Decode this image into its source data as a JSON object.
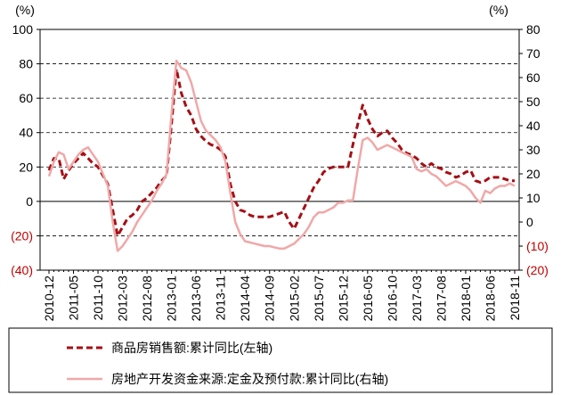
{
  "chart_data": {
    "type": "line",
    "y_label": "(%)",
    "y2_label": "(%)",
    "categories": [
      "2010-12",
      null,
      null,
      null,
      null,
      "2011-05",
      null,
      null,
      null,
      null,
      "2011-10",
      null,
      null,
      null,
      null,
      "2012-03",
      null,
      null,
      null,
      null,
      "2012-08",
      null,
      null,
      null,
      null,
      "2013-01",
      null,
      null,
      null,
      null,
      "2013-06",
      null,
      null,
      null,
      null,
      "2013-11",
      null,
      null,
      null,
      null,
      "2014-04",
      null,
      null,
      null,
      null,
      "2014-09",
      null,
      null,
      null,
      null,
      "2015-02",
      null,
      null,
      null,
      null,
      "2015-07",
      null,
      null,
      null,
      null,
      "2015-12",
      null,
      null,
      null,
      null,
      "2016-05",
      null,
      null,
      null,
      null,
      "2016-10",
      null,
      null,
      null,
      null,
      "2017-03",
      null,
      null,
      null,
      null,
      "2017-08",
      null,
      null,
      null,
      null,
      "2018-01",
      null,
      null,
      null,
      null,
      "2018-06",
      null,
      null,
      null,
      null,
      "2018-11"
    ],
    "series": [
      {
        "name": "商品房销售额:累计同比(左轴)",
        "color": "#a50f15",
        "dash": true,
        "axis": "y",
        "values": [
          18,
          25,
          25,
          13,
          18,
          22,
          25,
          28,
          25,
          22,
          20,
          15,
          10,
          -5,
          -20,
          -15,
          -10,
          -8,
          -5,
          0,
          2,
          5,
          8,
          12,
          15,
          45,
          77,
          63,
          55,
          50,
          42,
          38,
          35,
          33,
          32,
          30,
          26,
          10,
          0,
          -5,
          -6,
          -8,
          -9,
          -9,
          -9,
          -9,
          -8,
          -7,
          -6,
          -12,
          -16,
          -10,
          -4,
          2,
          8,
          12,
          17,
          19,
          20,
          20,
          20,
          20,
          33,
          45,
          56,
          48,
          42,
          38,
          40,
          41,
          37,
          34,
          30,
          28,
          27,
          25,
          22,
          20,
          22,
          20,
          19,
          17,
          16,
          14,
          15,
          17,
          18,
          12,
          11,
          12,
          14,
          14,
          14,
          13,
          12,
          12
        ]
      },
      {
        "name": "房地产开发资金来源:定金及预付款:累计同比(右轴)",
        "color": "#f0a8a8",
        "dash": false,
        "axis": "y2",
        "values": [
          19,
          25,
          29,
          28,
          22,
          25,
          28,
          30,
          31,
          28,
          25,
          20,
          15,
          0,
          -12,
          -10,
          -7,
          -4,
          0,
          3,
          6,
          9,
          13,
          16,
          20,
          45,
          67,
          64,
          63,
          58,
          50,
          42,
          38,
          36,
          34,
          31,
          25,
          12,
          0,
          -5,
          -8,
          -8.5,
          -9,
          -9.5,
          -10,
          -10,
          -10.5,
          -11,
          -11,
          -10,
          -9,
          -7,
          -5,
          -2,
          2,
          4,
          4,
          5,
          6,
          8,
          8,
          9,
          9,
          22,
          34,
          35,
          33,
          30,
          31,
          32,
          31,
          30,
          29,
          28,
          27,
          22,
          21,
          22,
          20,
          19,
          17,
          15,
          16,
          17,
          16,
          15,
          13,
          10,
          8,
          13,
          12,
          14,
          15,
          15,
          16,
          15
        ]
      }
    ],
    "ylim": [
      -40,
      100
    ],
    "yticks": [
      {
        "value": -40,
        "label": "(40)"
      },
      {
        "value": -20,
        "label": "(20)"
      },
      0,
      20,
      40,
      60,
      80,
      100
    ],
    "y2lim": [
      -20,
      80
    ],
    "y2ticks": [
      {
        "value": -20,
        "label": "(20)"
      },
      {
        "value": -10,
        "label": "(10)"
      },
      0,
      10,
      20,
      30,
      40,
      50,
      60,
      70,
      80
    ],
    "grid": true,
    "negative_color": "#c00000",
    "legend": "bottom"
  }
}
